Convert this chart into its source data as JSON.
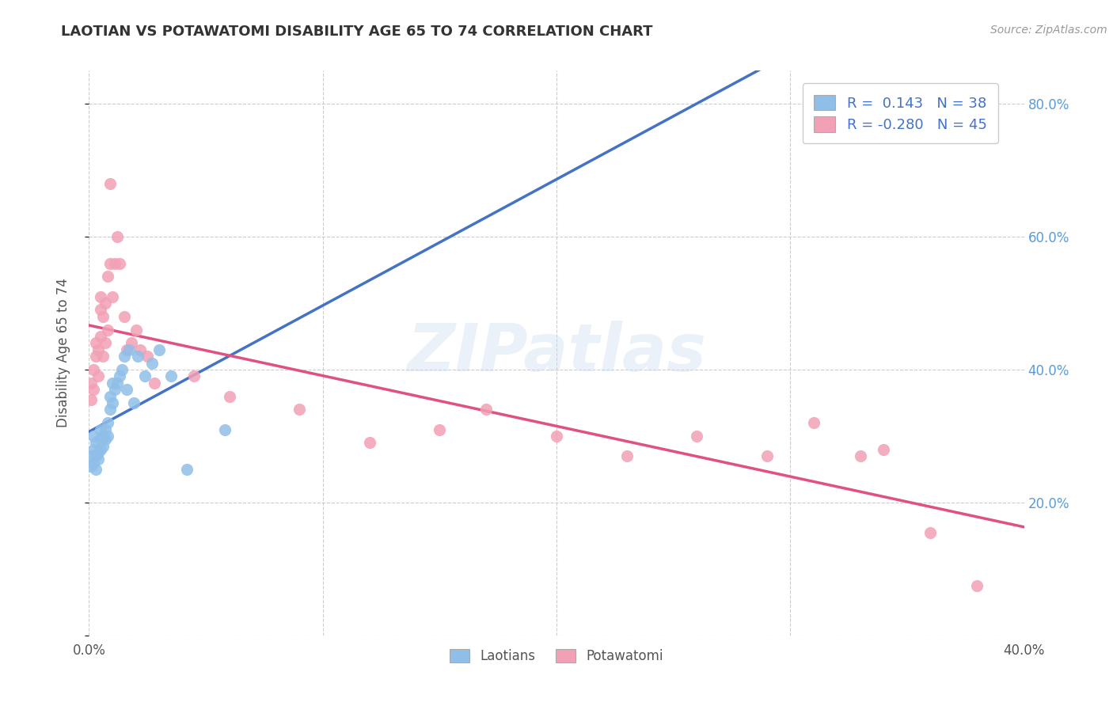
{
  "title": "LAOTIAN VS POTAWATOMI DISABILITY AGE 65 TO 74 CORRELATION CHART",
  "source": "Source: ZipAtlas.com",
  "ylabel": "Disability Age 65 to 74",
  "xlim": [
    0.0,
    0.4
  ],
  "ylim": [
    0.0,
    0.85
  ],
  "xticks": [
    0.0,
    0.1,
    0.2,
    0.3,
    0.4
  ],
  "xticklabels": [
    "0.0%",
    "",
    "",
    "",
    "40.0%"
  ],
  "yticks": [
    0.0,
    0.2,
    0.4,
    0.6,
    0.8
  ],
  "yticklabels_right": [
    "",
    "20.0%",
    "40.0%",
    "60.0%",
    "80.0%"
  ],
  "laotian_color": "#8FBFE8",
  "potawatomi_color": "#F2A0B5",
  "trend_laotian_color": "#4472C4",
  "trend_potawatomi_color": "#E05080",
  "R_laotian": 0.143,
  "N_laotian": 38,
  "R_potawatomi": -0.28,
  "N_potawatomi": 45,
  "legend_label_laotian": "Laotians",
  "legend_label_potawatomi": "Potawatomi",
  "watermark": "ZIPatlas",
  "background_color": "#FFFFFF",
  "grid_color": "#CCCCCC",
  "laotian_x": [
    0.001,
    0.001,
    0.002,
    0.002,
    0.002,
    0.003,
    0.003,
    0.003,
    0.004,
    0.004,
    0.005,
    0.005,
    0.005,
    0.006,
    0.006,
    0.007,
    0.007,
    0.008,
    0.008,
    0.009,
    0.009,
    0.01,
    0.01,
    0.011,
    0.012,
    0.013,
    0.014,
    0.015,
    0.016,
    0.017,
    0.019,
    0.021,
    0.024,
    0.027,
    0.03,
    0.035,
    0.042,
    0.058
  ],
  "laotian_y": [
    0.255,
    0.27,
    0.26,
    0.28,
    0.3,
    0.25,
    0.27,
    0.29,
    0.265,
    0.275,
    0.28,
    0.295,
    0.31,
    0.285,
    0.3,
    0.295,
    0.31,
    0.3,
    0.32,
    0.34,
    0.36,
    0.38,
    0.35,
    0.37,
    0.38,
    0.39,
    0.4,
    0.42,
    0.37,
    0.43,
    0.35,
    0.42,
    0.39,
    0.41,
    0.43,
    0.39,
    0.25,
    0.31
  ],
  "potawatomi_x": [
    0.001,
    0.001,
    0.002,
    0.002,
    0.003,
    0.003,
    0.004,
    0.004,
    0.005,
    0.005,
    0.005,
    0.006,
    0.006,
    0.007,
    0.007,
    0.008,
    0.008,
    0.009,
    0.009,
    0.01,
    0.011,
    0.012,
    0.013,
    0.015,
    0.016,
    0.018,
    0.02,
    0.022,
    0.025,
    0.028,
    0.045,
    0.06,
    0.09,
    0.12,
    0.15,
    0.17,
    0.2,
    0.23,
    0.26,
    0.29,
    0.31,
    0.33,
    0.34,
    0.36,
    0.38
  ],
  "potawatomi_y": [
    0.355,
    0.38,
    0.37,
    0.4,
    0.42,
    0.44,
    0.39,
    0.43,
    0.45,
    0.51,
    0.49,
    0.42,
    0.48,
    0.44,
    0.5,
    0.46,
    0.54,
    0.56,
    0.68,
    0.51,
    0.56,
    0.6,
    0.56,
    0.48,
    0.43,
    0.44,
    0.46,
    0.43,
    0.42,
    0.38,
    0.39,
    0.36,
    0.34,
    0.29,
    0.31,
    0.34,
    0.3,
    0.27,
    0.3,
    0.27,
    0.32,
    0.27,
    0.28,
    0.155,
    0.075
  ]
}
